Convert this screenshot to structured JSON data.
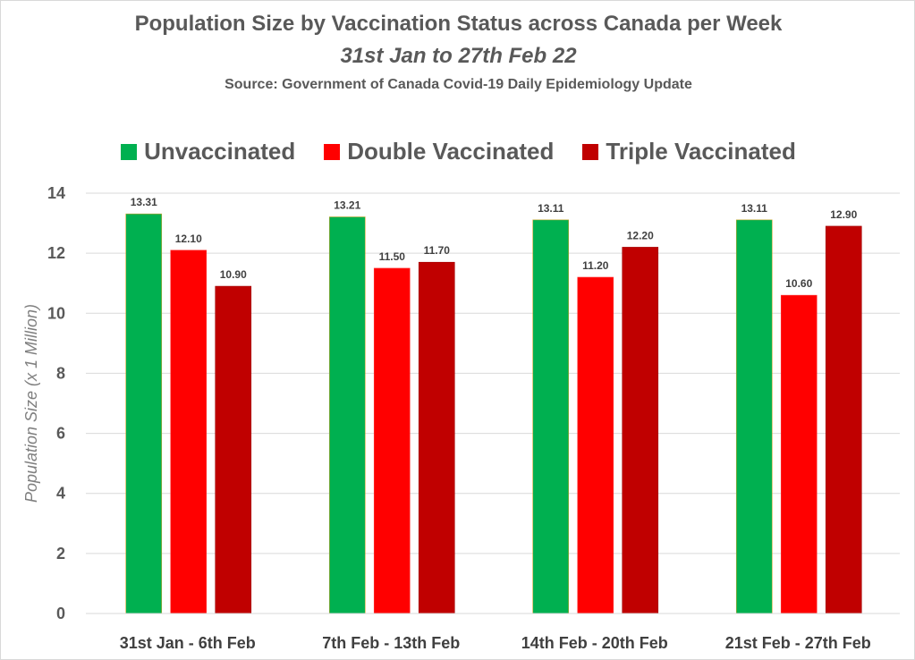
{
  "chart_data": {
    "type": "bar",
    "title": "Population Size by Vaccination Status across Canada per Week",
    "subtitle": "31st Jan to 27th Feb 22",
    "source": "Source: Government of Canada  Covid-19 Daily Epidemiology Update",
    "xlabel": "",
    "ylabel": "Population Size (x 1 Million)",
    "ylim": [
      0,
      14
    ],
    "yticks": [
      0,
      2,
      4,
      6,
      8,
      10,
      12,
      14
    ],
    "grid": true,
    "legend_position": "top",
    "categories": [
      "31st Jan - 6th Feb",
      "7th Feb - 13th Feb",
      "14th Feb - 20th Feb",
      "21st Feb - 27th Feb"
    ],
    "series": [
      {
        "name": "Unvaccinated",
        "color": "#00b050",
        "values": [
          13.31,
          13.21,
          13.11,
          13.11
        ],
        "labels": [
          "13.31",
          "13.21",
          "13.11",
          "13.11"
        ]
      },
      {
        "name": "Double Vaccinated",
        "color": "#ff0000",
        "values": [
          12.1,
          11.5,
          11.2,
          10.6
        ],
        "labels": [
          "12.10",
          "11.50",
          "11.20",
          "10.60"
        ]
      },
      {
        "name": "Triple Vaccinated",
        "color": "#c00000",
        "values": [
          10.9,
          11.7,
          12.2,
          12.9
        ],
        "labels": [
          "10.90",
          "11.70",
          "12.20",
          "12.90"
        ]
      }
    ]
  }
}
